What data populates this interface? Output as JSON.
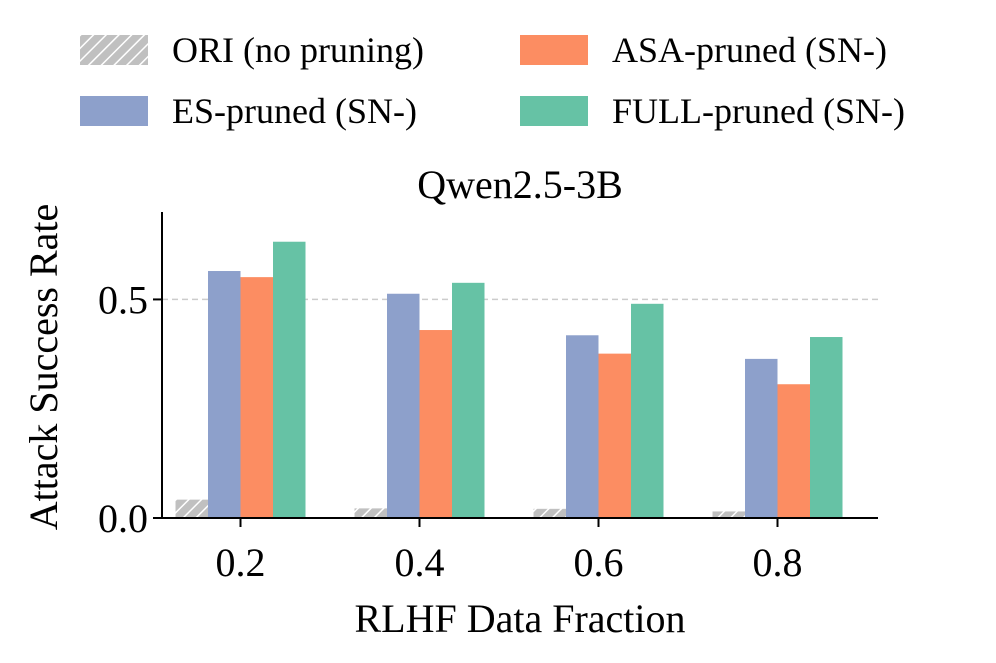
{
  "chart_data": {
    "type": "bar",
    "title": "Qwen2.5-3B",
    "xlabel": "RLHF Data Fraction",
    "ylabel": "Attack Success Rate",
    "categories": [
      "0.2",
      "0.4",
      "0.6",
      "0.8"
    ],
    "ylim": [
      0,
      0.7
    ],
    "yticks": [
      0.0,
      0.5
    ],
    "ytick_labels": [
      "0.0",
      "0.5"
    ],
    "reference_line": 0.5,
    "legend_position": "top",
    "series": [
      {
        "name": "ORI (no pruning)",
        "color": "#c0c0c0",
        "hatch": true,
        "values": [
          0.042,
          0.022,
          0.021,
          0.015
        ]
      },
      {
        "name": "ES-pruned (SN-)",
        "color": "#8da0cb",
        "hatch": false,
        "values": [
          0.565,
          0.513,
          0.418,
          0.364
        ]
      },
      {
        "name": "ASA-pruned (SN-)",
        "color": "#fc8d62",
        "hatch": false,
        "values": [
          0.551,
          0.43,
          0.376,
          0.306
        ]
      },
      {
        "name": "FULL-pruned (SN-)",
        "color": "#66c2a5",
        "hatch": false,
        "values": [
          0.632,
          0.538,
          0.49,
          0.414
        ]
      }
    ]
  }
}
